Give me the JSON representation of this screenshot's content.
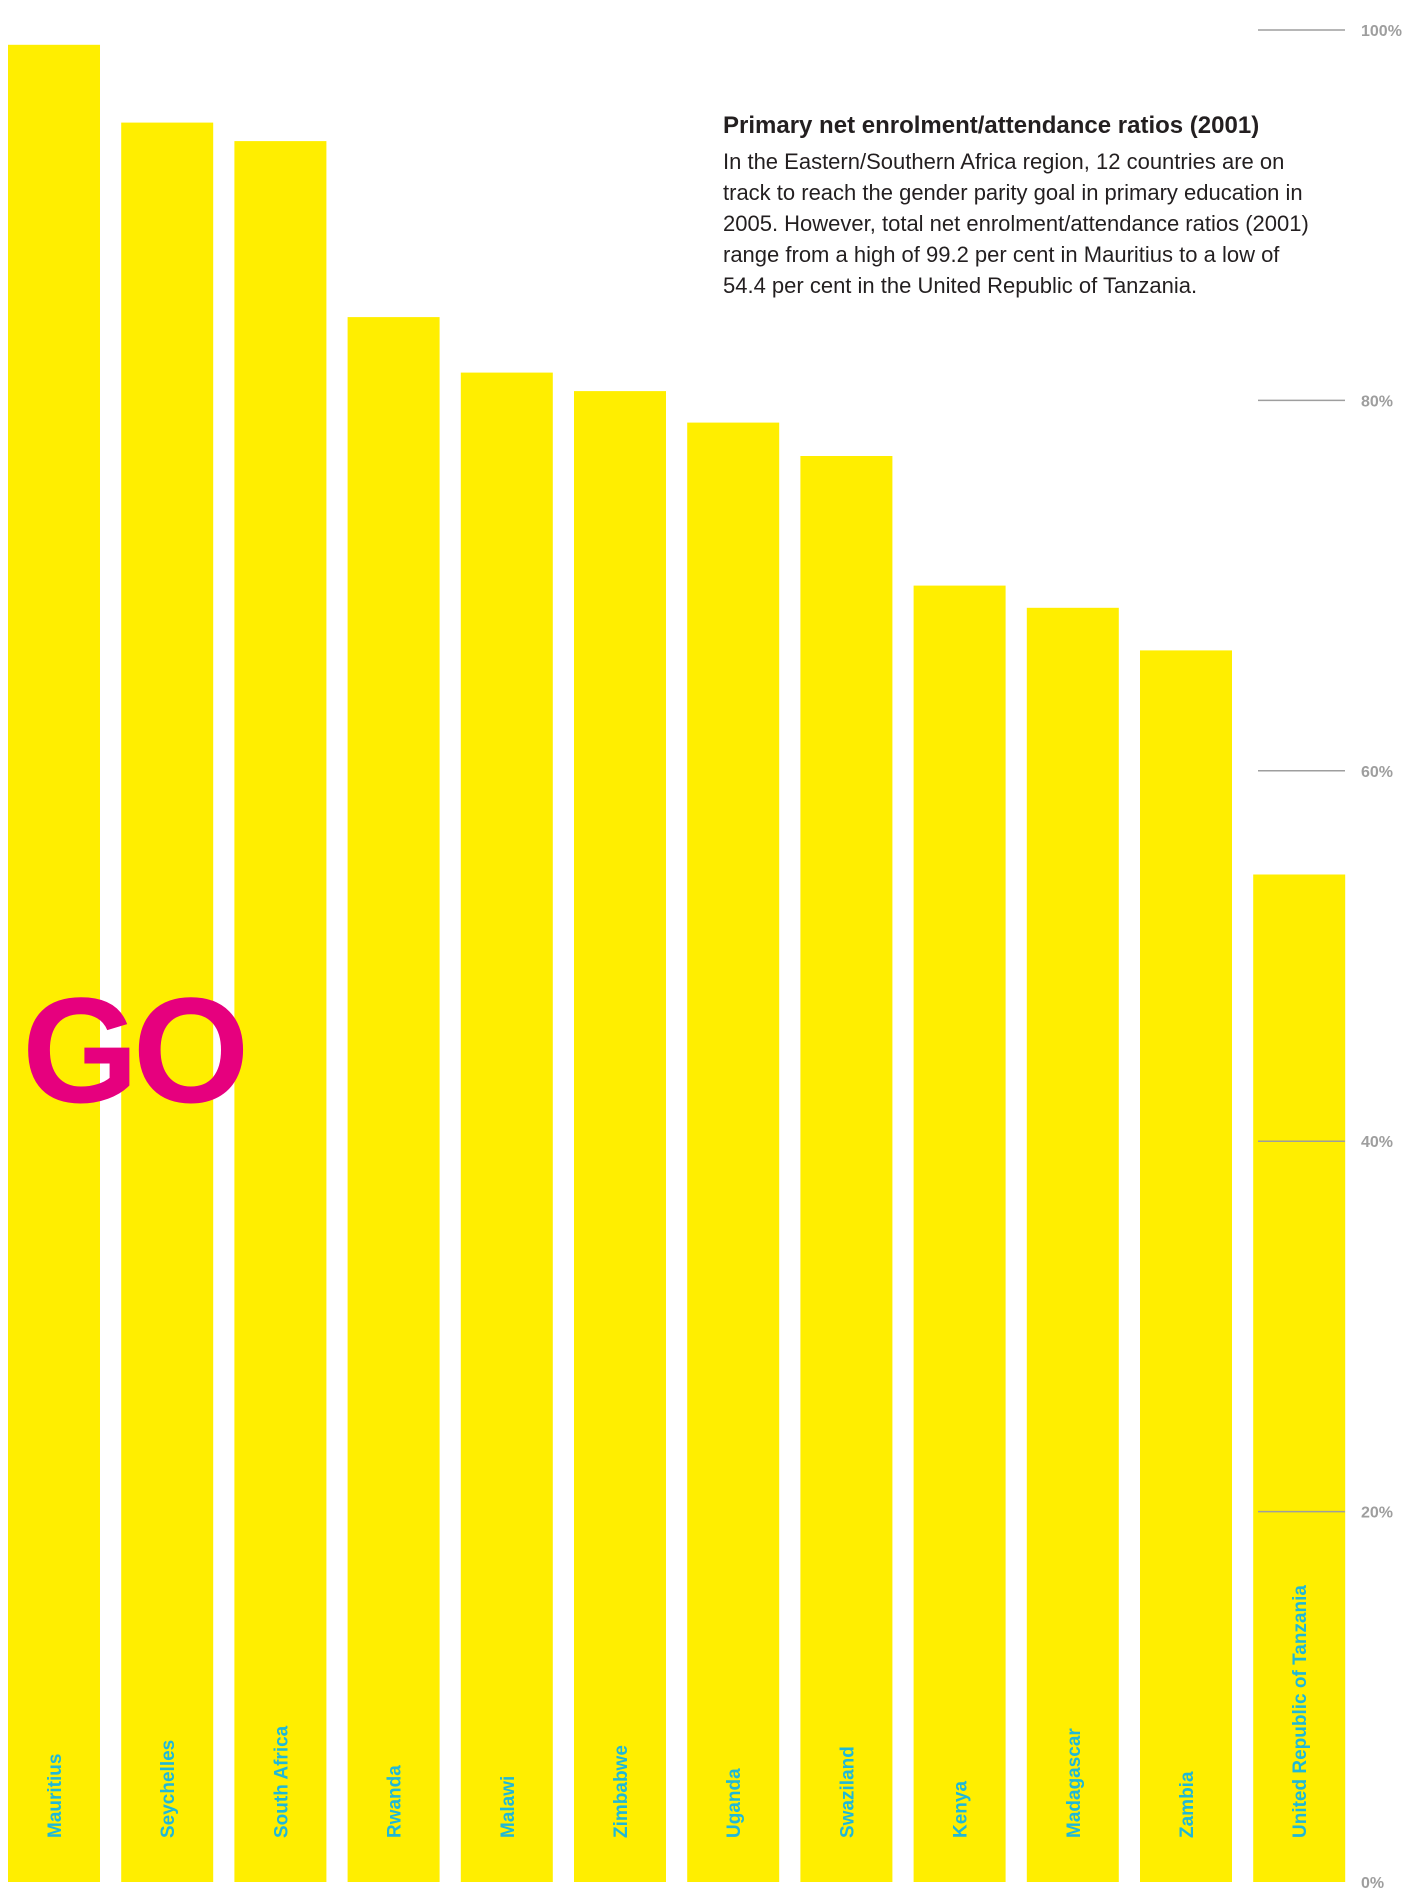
{
  "colors": {
    "bar": "#ffee00",
    "label": "#1fb8d8",
    "stamp": "#e6007e",
    "axis": "#9e9e9e",
    "text": "#231f20"
  },
  "stamp_text": "GO",
  "headline": "Primary net enrolment/attendance ratios (2001)",
  "body_text": "In the Eastern/Southern Africa region, 12 countries are on\ntrack to reach the gender parity goal in primary education in\n2005. However, total net enrolment/attendance ratios (2001)\nrange from a high of 99.2 per cent in Mauritius to a low of\n54.4 per cent in the United Republic of Tanzania.",
  "chart_data": {
    "type": "bar",
    "orientation": "vertical",
    "categories": [
      "Mauritius",
      "Seychelles",
      "South Africa",
      "Rwanda",
      "Malawi",
      "Zimbabwe",
      "Uganda",
      "Swaziland",
      "Kenya",
      "Madagascar",
      "Zambia",
      "United Republic of Tanzania"
    ],
    "values": [
      99.2,
      95,
      94,
      84.5,
      81.5,
      80.5,
      78.8,
      77,
      70,
      68.8,
      66.5,
      54.4
    ],
    "ylim": [
      0,
      100
    ],
    "yticks": [
      0,
      20,
      40,
      60,
      80,
      100
    ],
    "ytick_labels": [
      "0%",
      "20%",
      "40%",
      "60%",
      "80%",
      "100%"
    ],
    "ytick_lines": [
      20,
      40,
      60,
      80,
      100
    ],
    "axis_side": "right",
    "category_labels_inside_bars": true,
    "grid": false,
    "title": "Primary net enrolment/attendance ratios (2001)"
  }
}
